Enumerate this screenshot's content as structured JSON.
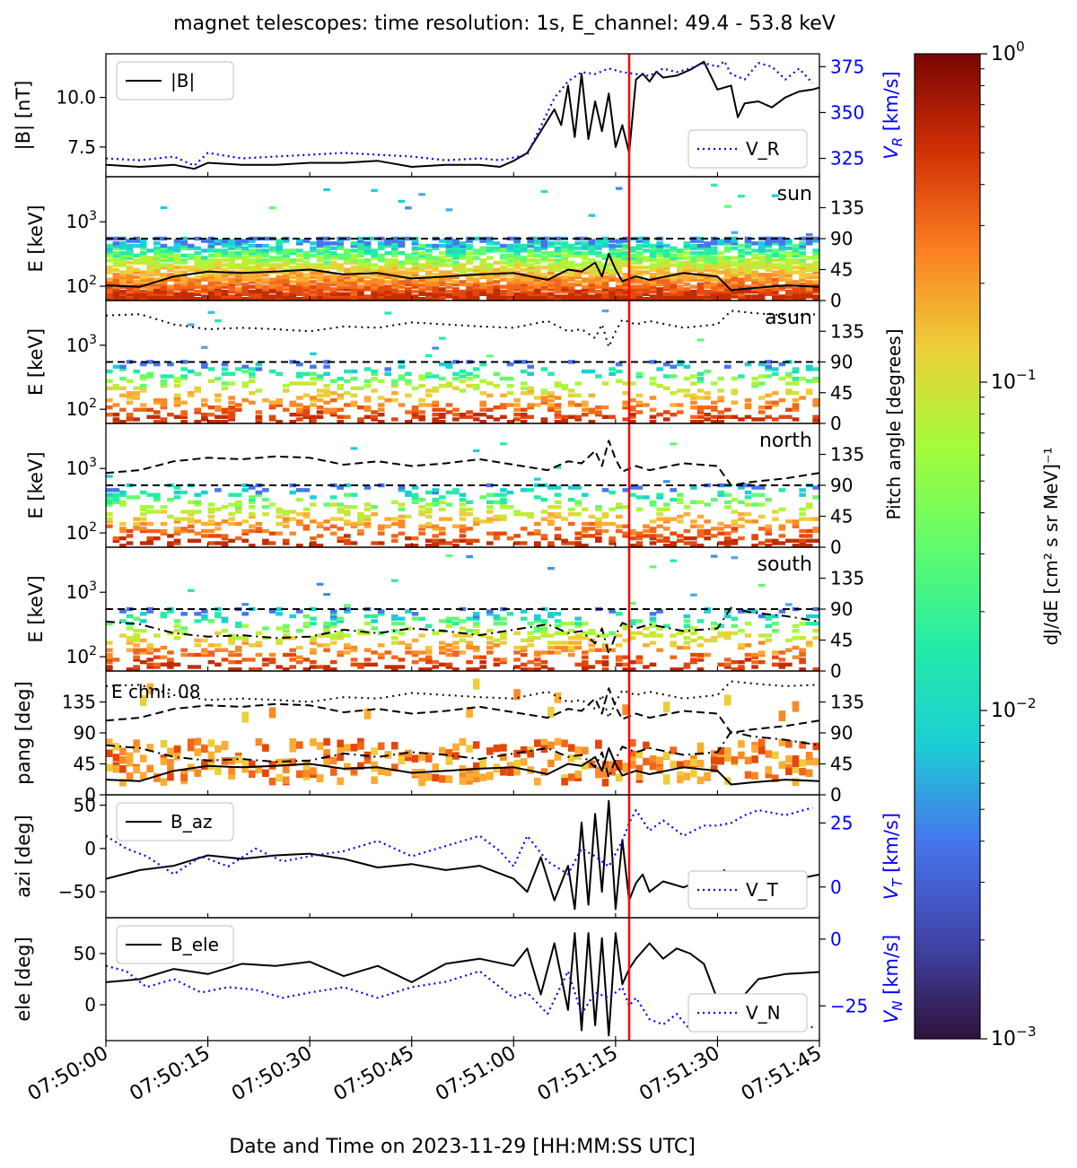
{
  "title": "magnet telescopes:   time resolution: 1s, E_channel: 49.4 - 53.8 keV",
  "xlabel": "Date and Time on 2023-11-29 [HH:MM:SS UTC]",
  "colors": {
    "b_line": "#000000",
    "v_line": "#0000ff",
    "event_line": "#ff0000",
    "secondary_axis": "#0000ff"
  },
  "colorbar": {
    "label": "dJ/dE [cm² s sr MeV]⁻¹",
    "ticks": [
      "10^0",
      "10^-1",
      "10^-2",
      "10^-3"
    ],
    "tick_labels": [
      {
        "base": "10",
        "exp": "0"
      },
      {
        "base": "10",
        "exp": "−1"
      },
      {
        "base": "10",
        "exp": "−2"
      },
      {
        "base": "10",
        "exp": "−3"
      }
    ],
    "range": [
      0.001,
      1
    ],
    "colormap": "turbo"
  },
  "chart_data": {
    "type": "line",
    "x_range_seconds": [
      0,
      105
    ],
    "x_ticks_seconds": [
      0,
      15,
      30,
      45,
      60,
      75,
      90,
      105
    ],
    "x_tick_labels": [
      "07:50:00",
      "07:50:15",
      "07:50:30",
      "07:50:45",
      "07:51:00",
      "07:51:15",
      "07:51:30",
      "07:51:45"
    ],
    "event_time_seconds": 77,
    "panels": [
      {
        "id": "b-mag",
        "ylabel": "|B| [nT]",
        "ylim": [
          6.0,
          12.2
        ],
        "y_ticks": [
          7.5,
          10.0
        ],
        "y_tick_labels": [
          "7.5",
          "10.0"
        ],
        "legend": "|B|",
        "right_ylabel": "V_R [km/s]",
        "right_ylabel_main": "V",
        "right_ylabel_sub": "R",
        "right_ylabel_unit": " [km/s]",
        "right_ylim": [
          315,
          382
        ],
        "right_y_ticks": [
          325,
          350,
          375
        ],
        "right_y_tick_labels": [
          "325",
          "350",
          "375"
        ],
        "right_legend": "V_R",
        "series": [
          {
            "name": "|B|",
            "x": [
              0,
              5,
              10,
              13,
              15,
              20,
              25,
              30,
              35,
              40,
              45,
              50,
              55,
              58,
              60,
              62,
              64,
              66,
              67,
              68,
              69,
              70,
              71,
              72,
              73,
              74,
              75,
              76,
              77,
              78,
              79,
              80,
              81,
              82,
              84,
              86,
              88,
              90,
              92,
              93,
              94,
              96,
              98,
              100,
              102,
              104,
              105
            ],
            "y": [
              6.6,
              6.5,
              6.6,
              6.4,
              6.7,
              6.6,
              6.6,
              6.7,
              6.7,
              6.8,
              6.5,
              6.6,
              6.6,
              6.5,
              6.8,
              7.2,
              8.3,
              9.4,
              8.6,
              10.6,
              8.0,
              11.2,
              7.9,
              9.8,
              8.3,
              10.2,
              7.5,
              8.6,
              7.2,
              10.9,
              11.2,
              10.8,
              11.3,
              11.0,
              11.1,
              11.4,
              11.8,
              10.4,
              10.6,
              9.0,
              9.7,
              9.8,
              9.5,
              10.0,
              10.3,
              10.4,
              10.5
            ]
          },
          {
            "name": "V_R",
            "x": [
              0,
              5,
              10,
              13,
              15,
              20,
              25,
              30,
              35,
              40,
              45,
              50,
              55,
              58,
              62,
              66,
              68,
              70,
              72,
              74,
              76,
              78,
              80,
              82,
              84,
              86,
              88,
              90,
              91,
              92,
              94,
              96,
              98,
              100,
              102,
              104
            ],
            "y": [
              325,
              324,
              326,
              321,
              328,
              325,
              326,
              327,
              328,
              327,
              326,
              324,
              325,
              324,
              327,
              358,
              367,
              372,
              371,
              374,
              372,
              371,
              370,
              374,
              372,
              374,
              377,
              375,
              378,
              371,
              368,
              377,
              375,
              368,
              374,
              366
            ]
          }
        ]
      },
      {
        "id": "sun",
        "label": "sun",
        "ylabel": "E [keV]",
        "ylog": true,
        "ylim_keV": [
          60,
          5000
        ],
        "y_ticks": [
          "10^2",
          "10^3"
        ],
        "right_ylim_deg": [
          0,
          180
        ],
        "right_y_ticks": [
          "0",
          "45",
          "90",
          "135"
        ],
        "pitch_angle_line": {
          "style": "solid",
          "x": [
            0,
            5,
            10,
            15,
            20,
            25,
            30,
            35,
            40,
            45,
            50,
            55,
            60,
            65,
            68,
            70,
            72,
            73,
            74,
            75,
            76,
            78,
            80,
            85,
            90,
            92,
            95,
            100,
            105
          ],
          "y": [
            22,
            20,
            35,
            42,
            40,
            42,
            45,
            38,
            40,
            32,
            35,
            38,
            40,
            30,
            45,
            42,
            55,
            35,
            68,
            45,
            28,
            35,
            30,
            40,
            35,
            15,
            18,
            22,
            20
          ]
        }
      },
      {
        "id": "asun",
        "label": "asun",
        "ylabel": "E [keV]",
        "ylog": true,
        "ylim_keV": [
          60,
          5000
        ],
        "y_ticks": [
          "10^2",
          "10^3"
        ],
        "right_ylim_deg": [
          0,
          180
        ],
        "right_y_ticks": [
          "0",
          "45",
          "90",
          "135"
        ],
        "pitch_angle_line": {
          "style": "dotted",
          "x": [
            0,
            5,
            10,
            15,
            20,
            25,
            30,
            35,
            40,
            45,
            50,
            55,
            60,
            65,
            68,
            70,
            72,
            73,
            74,
            75,
            76,
            78,
            80,
            85,
            90,
            92,
            95,
            100,
            105
          ],
          "y": [
            158,
            160,
            145,
            138,
            140,
            138,
            135,
            142,
            140,
            148,
            145,
            142,
            140,
            150,
            135,
            138,
            125,
            145,
            112,
            135,
            152,
            145,
            150,
            140,
            145,
            165,
            162,
            158,
            160
          ]
        }
      },
      {
        "id": "north",
        "label": "north",
        "ylabel": "E [keV]",
        "ylog": true,
        "ylim_keV": [
          60,
          5000
        ],
        "y_ticks": [
          "10^2",
          "10^3"
        ],
        "right_ylim_deg": [
          0,
          180
        ],
        "right_y_ticks": [
          "0",
          "45",
          "90",
          "135"
        ],
        "pitch_angle_line": {
          "style": "dashed",
          "x": [
            0,
            5,
            10,
            15,
            20,
            25,
            30,
            35,
            40,
            45,
            50,
            55,
            60,
            65,
            68,
            70,
            72,
            73,
            74,
            75,
            76,
            78,
            80,
            85,
            90,
            92,
            95,
            100,
            105
          ],
          "y": [
            108,
            112,
            125,
            130,
            128,
            132,
            130,
            120,
            125,
            118,
            122,
            128,
            120,
            112,
            125,
            122,
            140,
            118,
            155,
            128,
            110,
            118,
            112,
            122,
            118,
            90,
            95,
            100,
            108
          ]
        }
      },
      {
        "id": "south",
        "label": "south",
        "ylabel": "E [keV]",
        "ylog": true,
        "ylim_keV": [
          60,
          5000
        ],
        "y_ticks": [
          "10^2",
          "10^3"
        ],
        "right_ylim_deg": [
          0,
          180
        ],
        "right_y_ticks": [
          "0",
          "45",
          "90",
          "135"
        ],
        "pitch_angle_line": {
          "style": "dashdot",
          "x": [
            0,
            5,
            10,
            15,
            20,
            25,
            30,
            35,
            40,
            45,
            50,
            55,
            60,
            65,
            68,
            70,
            72,
            73,
            74,
            75,
            76,
            78,
            80,
            85,
            90,
            92,
            95,
            100,
            105
          ],
          "y": [
            72,
            68,
            55,
            50,
            52,
            48,
            50,
            60,
            55,
            62,
            58,
            52,
            60,
            68,
            55,
            58,
            40,
            62,
            25,
            52,
            70,
            62,
            68,
            58,
            62,
            92,
            85,
            80,
            72
          ]
        }
      },
      {
        "id": "pang",
        "ylabel": "pang [deg]",
        "ylim_deg": [
          0,
          180
        ],
        "y_ticks": [
          "0",
          "45",
          "90",
          "135"
        ],
        "right_y_ticks": [
          "0",
          "45",
          "90",
          "135"
        ],
        "annotation": "E chnl: 08"
      },
      {
        "id": "b-az",
        "ylabel": "azi [deg]",
        "ylim": [
          -80,
          62
        ],
        "y_ticks": [
          -50,
          0,
          50
        ],
        "y_tick_labels": [
          "−50",
          "0",
          "50"
        ],
        "legend": "B_az",
        "right_ylabel": "V_T [km/s]",
        "right_ylabel_main": "V",
        "right_ylabel_sub": "T",
        "right_ylabel_unit": " [km/s]",
        "right_ylim": [
          -12,
          36
        ],
        "right_y_ticks": [
          0,
          25
        ],
        "right_y_tick_labels": [
          "0",
          "25"
        ],
        "right_legend": "V_T",
        "series": [
          {
            "name": "B_az",
            "x": [
              0,
              5,
              10,
              15,
              20,
              25,
              30,
              35,
              40,
              45,
              50,
              55,
              60,
              62,
              64,
              66,
              68,
              69,
              70,
              71,
              72,
              73,
              74,
              75,
              76,
              77,
              78,
              79,
              80,
              82,
              85,
              88,
              90,
              91,
              92,
              95,
              100,
              105
            ],
            "y": [
              -35,
              -25,
              -20,
              -8,
              -12,
              -8,
              -6,
              -12,
              -22,
              -18,
              -25,
              -20,
              -35,
              -50,
              -10,
              -60,
              -20,
              -70,
              30,
              -65,
              40,
              -50,
              55,
              -70,
              10,
              -60,
              -40,
              -30,
              -50,
              -38,
              -45,
              -35,
              -35,
              -25,
              -45,
              -40,
              -38,
              -30
            ]
          },
          {
            "name": "V_T",
            "x": [
              0,
              3,
              6,
              10,
              14,
              18,
              22,
              26,
              30,
              35,
              40,
              45,
              50,
              55,
              58,
              60,
              62,
              65,
              68,
              70,
              72,
              74,
              76,
              77,
              78,
              80,
              82,
              85,
              88,
              90,
              92,
              94,
              96,
              100,
              104
            ],
            "y": [
              20,
              15,
              12,
              5,
              12,
              8,
              15,
              10,
              12,
              14,
              18,
              12,
              16,
              20,
              14,
              8,
              20,
              10,
              5,
              15,
              12,
              8,
              18,
              25,
              30,
              22,
              26,
              20,
              24,
              24,
              25,
              28,
              30,
              28,
              31
            ]
          }
        ]
      },
      {
        "id": "b-ele",
        "ylabel": "ele [deg]",
        "ylim": [
          -35,
          85
        ],
        "y_ticks": [
          0,
          50
        ],
        "y_tick_labels": [
          "0",
          "50"
        ],
        "legend": "B_ele",
        "right_ylabel": "V_N [km/s]",
        "right_ylabel_main": "V",
        "right_ylabel_sub": "N",
        "right_ylabel_unit": " [km/s]",
        "right_ylim": [
          -38,
          8
        ],
        "right_y_ticks": [
          -25,
          0
        ],
        "right_y_tick_labels": [
          "−25",
          "0"
        ],
        "right_legend": "V_N",
        "series": [
          {
            "name": "B_ele",
            "x": [
              0,
              5,
              10,
              15,
              20,
              25,
              30,
              35,
              40,
              45,
              50,
              55,
              60,
              62,
              64,
              66,
              68,
              69,
              70,
              71,
              72,
              73,
              74,
              75,
              76,
              77,
              78,
              80,
              82,
              84,
              86,
              88,
              90,
              92,
              94,
              96,
              100,
              105
            ],
            "y": [
              22,
              25,
              35,
              30,
              40,
              38,
              42,
              28,
              38,
              22,
              40,
              45,
              38,
              55,
              10,
              60,
              -5,
              70,
              -25,
              70,
              -20,
              65,
              -30,
              70,
              20,
              35,
              45,
              60,
              45,
              55,
              50,
              40,
              5,
              -5,
              10,
              25,
              30,
              32
            ]
          },
          {
            "name": "V_N",
            "x": [
              0,
              3,
              6,
              10,
              14,
              18,
              22,
              26,
              30,
              35,
              40,
              45,
              50,
              55,
              58,
              60,
              62,
              65,
              68,
              70,
              72,
              74,
              76,
              77,
              78,
              80,
              82,
              84,
              86,
              88,
              90,
              92,
              94,
              96,
              100,
              104
            ],
            "y": [
              -10,
              -12,
              -18,
              -15,
              -20,
              -18,
              -19,
              -22,
              -20,
              -18,
              -22,
              -18,
              -16,
              -12,
              -18,
              -22,
              -20,
              -28,
              -12,
              -28,
              -20,
              -22,
              -18,
              -25,
              -22,
              -30,
              -32,
              -28,
              -34,
              -30,
              -33,
              -30,
              -31,
              -31,
              -32,
              -33
            ]
          }
        ]
      }
    ],
    "right_ylabel_shared": "Pitch angle [degrees]"
  }
}
